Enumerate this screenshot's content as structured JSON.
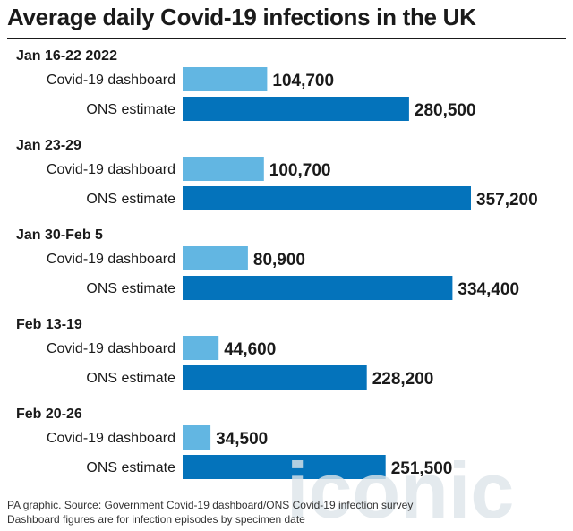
{
  "chart_data": {
    "type": "bar",
    "orientation": "horizontal",
    "title": "Average daily Covid-19 infections in the UK",
    "groups": [
      "Jan 16-22 2022",
      "Jan 23-29",
      "Jan 30-Feb 5",
      "Feb 13-19",
      "Feb 20-26"
    ],
    "series": [
      {
        "name": "Covid-19 dashboard",
        "values": [
          104700,
          100700,
          80900,
          44600,
          34500
        ],
        "labels": [
          "104,700",
          "100,700",
          "80,900",
          "44,600",
          "34,500"
        ]
      },
      {
        "name": "ONS estimate",
        "values": [
          280500,
          357200,
          334400,
          228200,
          251500
        ],
        "labels": [
          "280,500",
          "357,200",
          "334,400",
          "228,200",
          "251,500"
        ]
      }
    ],
    "xlim": [
      0,
      357200
    ],
    "grid": false
  },
  "colors": {
    "dashboard": "#62b6e2",
    "ons": "#0473bb",
    "text": "#1a1a1a",
    "watermark": "#dde5ea"
  },
  "footer": {
    "source": "PA graphic. Source: Government Covid-19 dashboard/ONS Covid-19 infection survey",
    "note": "Dashboard figures are for infection episodes by specimen date"
  },
  "watermark": {
    "text": "iconic"
  }
}
